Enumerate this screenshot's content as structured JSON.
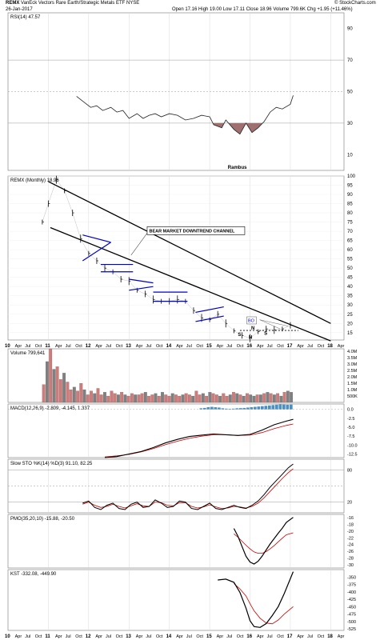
{
  "header": {
    "symbol": "REMX",
    "name": "VanEck Vectors Rare Earth/Strategic Metals ETF",
    "exchange": "NYSE",
    "date": "26-Jan-2017",
    "ohlc": "Open 17.16  High 19.00  Low 17.11  Close 18.96  Volume 799.6K  Chg +1.95 (+11.46%)",
    "copyright": "© StockCharts.com"
  },
  "chart_data": [
    {
      "type": "line",
      "panel": "rsi",
      "title": "RSI(14) 47.57",
      "y_ticks": [
        10,
        30,
        50,
        70,
        90
      ],
      "ylim": [
        0,
        100
      ],
      "reference_lines": [
        30,
        50,
        70
      ],
      "x": [
        2011.7,
        2011.9,
        2012.05,
        2012.2,
        2012.35,
        2012.55,
        2012.7,
        2012.85,
        2013.0,
        2013.2,
        2013.35,
        2013.5,
        2013.65,
        2013.8,
        2014.0,
        2014.2,
        2014.4,
        2014.6,
        2014.8,
        2015.0,
        2015.1,
        2015.3,
        2015.4,
        2015.6,
        2015.75,
        2015.9,
        2016.05,
        2016.2,
        2016.35,
        2016.5,
        2016.65,
        2016.8,
        2017.0,
        2017.07
      ],
      "values": [
        47,
        43,
        40,
        41,
        38,
        40,
        37,
        38,
        33,
        36,
        33,
        35,
        36,
        34,
        36,
        35,
        32,
        33,
        35,
        34,
        29,
        27,
        32,
        26,
        23,
        30,
        24,
        27,
        31,
        37,
        40,
        39,
        42,
        47.57
      ],
      "annotation": "Rambus"
    },
    {
      "type": "line",
      "panel": "price",
      "title": "REMX (Monthly) 18.96",
      "y_ticks": [
        15,
        20,
        25,
        30,
        35,
        40,
        45,
        50,
        55,
        60,
        65,
        70,
        75,
        80,
        85,
        90,
        95,
        100
      ],
      "ylim": [
        11,
        100
      ],
      "x": [
        2010.85,
        2011.0,
        2011.2,
        2011.4,
        2011.6,
        2011.8,
        2012.0,
        2012.2,
        2012.4,
        2012.6,
        2012.8,
        2013.0,
        2013.2,
        2013.4,
        2013.6,
        2013.8,
        2014.0,
        2014.2,
        2014.4,
        2014.6,
        2014.8,
        2015.0,
        2015.2,
        2015.4,
        2015.6,
        2015.8,
        2016.0,
        2016.2,
        2016.4,
        2016.6,
        2016.8,
        2017.0
      ],
      "values": [
        75,
        85,
        98,
        92,
        80,
        66,
        58,
        54,
        50,
        48,
        44,
        43,
        38,
        36,
        33,
        32,
        32,
        33,
        32,
        27,
        23,
        22,
        25,
        20,
        16,
        13.5,
        12,
        15.5,
        17,
        16.5,
        17,
        18.96
      ],
      "annotations": [
        "BEAR MARKET DOWNTREND CHANNEL",
        "BO",
        "S",
        "H",
        "S",
        "N"
      ],
      "x_ticks": [
        "10",
        "Apr",
        "Jul",
        "Oct",
        "11",
        "Apr",
        "Jul",
        "Oct",
        "12",
        "Apr",
        "Jul",
        "Oct",
        "13",
        "Apr",
        "Jul",
        "Oct",
        "14",
        "Apr",
        "Jul",
        "Oct",
        "15",
        "Apr",
        "Jul",
        "Oct",
        "16",
        "Apr",
        "Jul",
        "Oct",
        "17",
        "Apr",
        "Jul",
        "Oct",
        "18",
        "Apr"
      ]
    },
    {
      "type": "bar",
      "panel": "volume",
      "title": "Volume 799,641",
      "y_ticks": [
        "500K",
        "1.0M",
        "1.5M",
        "2.0M",
        "2.5M",
        "3.0M",
        "3.5M",
        "4.0M"
      ],
      "ylim": [
        0,
        4.2
      ],
      "unit": "M",
      "values": [
        1.4,
        3.2,
        4.2,
        2.6,
        2.8,
        1.8,
        2.3,
        1.6,
        1.0,
        1.2,
        0.9,
        1.5,
        1.0,
        0.6,
        0.9,
        0.7,
        1.1,
        0.6,
        0.8,
        0.5,
        0.9,
        0.7,
        0.6,
        0.8,
        0.6,
        0.5,
        0.7,
        0.6,
        0.6,
        0.7,
        0.8,
        0.5,
        0.6,
        0.7,
        0.5,
        0.8,
        0.6,
        0.5,
        0.7,
        0.6,
        0.5,
        0.6,
        0.7,
        0.6,
        0.5,
        0.9,
        0.6,
        0.7,
        0.5,
        0.8,
        0.7,
        0.6,
        0.5,
        0.7,
        0.5,
        0.6,
        0.8,
        0.7,
        0.6,
        0.5,
        0.7,
        0.6,
        0.5,
        0.6,
        0.6,
        0.7,
        0.8,
        0.7,
        0.6,
        0.7,
        0.5,
        0.8,
        0.9,
        0.8
      ],
      "up": [
        0,
        1,
        0,
        1,
        0,
        0,
        1,
        0,
        0,
        1,
        0,
        0,
        1,
        0,
        0,
        1,
        0,
        0,
        1,
        0,
        0,
        0,
        1,
        0,
        1,
        0,
        0,
        1,
        0,
        0,
        1,
        0,
        0,
        1,
        0,
        1,
        0,
        0,
        1,
        0,
        0,
        1,
        0,
        0,
        1,
        0,
        0,
        1,
        0,
        1,
        0,
        0,
        1,
        0,
        0,
        1,
        0,
        1,
        0,
        1,
        0,
        1,
        1,
        0,
        1,
        0,
        1,
        0,
        1,
        0,
        1,
        0,
        1,
        1
      ]
    },
    {
      "type": "line",
      "panel": "macd",
      "title": "MACD(12,26,9) -2.809, -4.145, 1.337",
      "y_ticks": [
        "0.0",
        "-2.5",
        "-5.0",
        "-7.5",
        "-10.0",
        "-12.5"
      ],
      "ylim": [
        -13.5,
        1.5
      ],
      "x": [
        2012.4,
        2012.7,
        2013.0,
        2013.3,
        2013.6,
        2013.9,
        2014.2,
        2014.5,
        2014.8,
        2015.1,
        2015.4,
        2015.7,
        2016.0,
        2016.3,
        2016.6,
        2016.9,
        2017.07
      ],
      "series": [
        {
          "name": "MACD",
          "values": [
            -13.5,
            -13.2,
            -12.5,
            -11.8,
            -10.7,
            -9.4,
            -8.4,
            -7.6,
            -7.2,
            -6.9,
            -7.1,
            -7.3,
            -7.0,
            -5.8,
            -4.3,
            -3.3,
            -2.8
          ]
        },
        {
          "name": "Signal",
          "values": [
            -13.3,
            -13.0,
            -12.6,
            -11.9,
            -11.0,
            -9.9,
            -8.9,
            -8.1,
            -7.5,
            -7.1,
            -7.1,
            -7.3,
            -7.2,
            -6.5,
            -5.4,
            -4.5,
            -4.1
          ]
        }
      ],
      "histogram": [
        0.3,
        0.4,
        0.6,
        0.7,
        0.6,
        0.5,
        0.3,
        0.2,
        0.15,
        0.2,
        0.3,
        0.35,
        0.4,
        0.5,
        0.6,
        0.7,
        0.8,
        0.9,
        1.0,
        1.1,
        1.2,
        1.3,
        1.4,
        1.35,
        1.3,
        1.337
      ]
    },
    {
      "type": "line",
      "panel": "stochastic",
      "title": "Slow STO %K(14) %D(3) 91.10, 82.25",
      "y_ticks": [
        20,
        80
      ],
      "ylim": [
        0,
        100
      ],
      "reference_lines": [
        20,
        50,
        80
      ],
      "x": [
        2011.85,
        2012.0,
        2012.15,
        2012.3,
        2012.45,
        2012.6,
        2012.75,
        2012.9,
        2013.05,
        2013.2,
        2013.35,
        2013.5,
        2013.65,
        2013.8,
        2013.95,
        2014.1,
        2014.25,
        2014.4,
        2014.55,
        2014.7,
        2014.85,
        2015.0,
        2015.15,
        2015.3,
        2015.45,
        2015.6,
        2015.75,
        2015.9,
        2016.05,
        2016.2,
        2016.35,
        2016.5,
        2016.65,
        2016.8,
        2016.95,
        2017.07
      ],
      "series": [
        {
          "name": "%K",
          "values": [
            18,
            22,
            10,
            6,
            14,
            18,
            8,
            6,
            16,
            20,
            10,
            12,
            24,
            18,
            10,
            12,
            22,
            20,
            8,
            6,
            12,
            18,
            8,
            6,
            10,
            14,
            10,
            8,
            14,
            22,
            34,
            48,
            60,
            72,
            84,
            91.1
          ]
        },
        {
          "name": "%D",
          "values": [
            16,
            20,
            14,
            10,
            12,
            16,
            12,
            9,
            13,
            17,
            13,
            12,
            20,
            19,
            14,
            13,
            19,
            19,
            12,
            9,
            11,
            15,
            11,
            8,
            9,
            12,
            11,
            9,
            12,
            18,
            28,
            40,
            52,
            64,
            75,
            82.25
          ]
        }
      ]
    },
    {
      "type": "line",
      "panel": "pmo",
      "title": "PMO(35,20,10) -15.88, -20.50",
      "y_ticks": [
        -16,
        -18,
        -20,
        -22,
        -24,
        -26,
        -28,
        -30
      ],
      "ylim": [
        -31,
        -15
      ],
      "x": [
        2015.6,
        2015.7,
        2015.8,
        2015.9,
        2016.0,
        2016.1,
        2016.2,
        2016.3,
        2016.4,
        2016.5,
        2016.6,
        2016.7,
        2016.8,
        2016.9,
        2017.07
      ],
      "series": [
        {
          "name": "PMO",
          "values": [
            -19.2,
            -21.5,
            -24.5,
            -27.5,
            -29.2,
            -29.8,
            -29.0,
            -27.5,
            -25.6,
            -23.8,
            -22.2,
            -20.6,
            -19.1,
            -17.4,
            -15.88
          ]
        },
        {
          "name": "Signal",
          "values": [
            -20.8,
            -21.8,
            -23.0,
            -24.2,
            -25.3,
            -26.2,
            -26.6,
            -26.6,
            -26.1,
            -25.3,
            -24.3,
            -23.2,
            -22.1,
            -21.1,
            -20.5
          ]
        }
      ]
    },
    {
      "type": "line",
      "panel": "kst",
      "title": "KST -332.08, -449.90",
      "y_ticks": [
        -350,
        -375,
        -400,
        -425,
        -450,
        -475,
        -500,
        -525
      ],
      "ylim": [
        -530,
        -325
      ],
      "x": [
        2015.2,
        2015.4,
        2015.6,
        2015.75,
        2015.9,
        2016.0,
        2016.1,
        2016.25,
        2016.4,
        2016.55,
        2016.7,
        2016.85,
        2017.07
      ],
      "series": [
        {
          "name": "KST",
          "values": [
            -360,
            -357,
            -368,
            -402,
            -455,
            -497,
            -517,
            -520,
            -507,
            -480,
            -450,
            -405,
            -332.08
          ]
        },
        {
          "name": "Signal",
          "values": [
            null,
            null,
            -372,
            -390,
            -414,
            -440,
            -464,
            -489,
            -505,
            -508,
            -495,
            -475,
            -449.9
          ]
        }
      ]
    }
  ],
  "colors": {
    "price_line": "#000000",
    "trend_line": "#000000",
    "pattern": "#0000cc",
    "signal": "#cc0000",
    "volume_up": "#808080",
    "volume_down": "#d07a7a",
    "macd_hist": "#4a90c2",
    "rsi_fill": "#a07070",
    "grid": "#d8d8d8"
  }
}
